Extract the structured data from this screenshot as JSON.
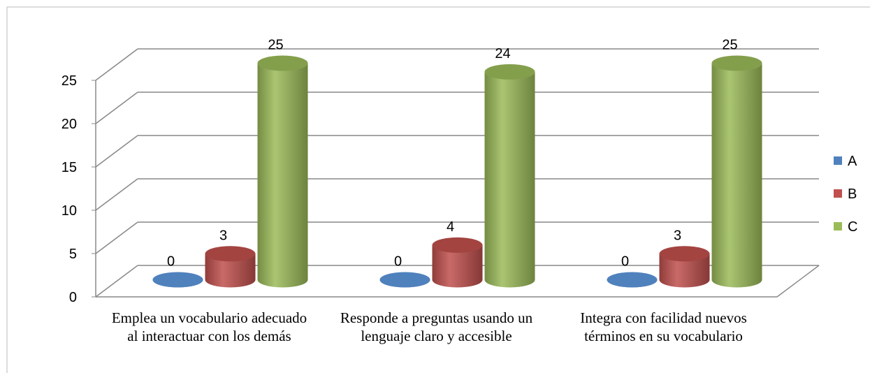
{
  "chart_data": {
    "type": "bar3d",
    "categories": [
      "Emplea un vocabulario adecuado al interactuar con los demás",
      "Responde a preguntas usando un lenguaje claro y accesible",
      "Integra con facilidad nuevos términos en su vocabulario"
    ],
    "series": [
      {
        "name": "A",
        "color": "#4f81bd",
        "values": [
          0,
          0,
          0
        ]
      },
      {
        "name": "B",
        "color": "#c0504d",
        "values": [
          3,
          4,
          3
        ]
      },
      {
        "name": "C",
        "color": "#9bbb59",
        "values": [
          25,
          24,
          25
        ]
      }
    ],
    "ylim": [
      0,
      25
    ],
    "yticks": [
      0,
      5,
      10,
      15,
      20,
      25
    ],
    "grid": true,
    "legend": "right"
  }
}
